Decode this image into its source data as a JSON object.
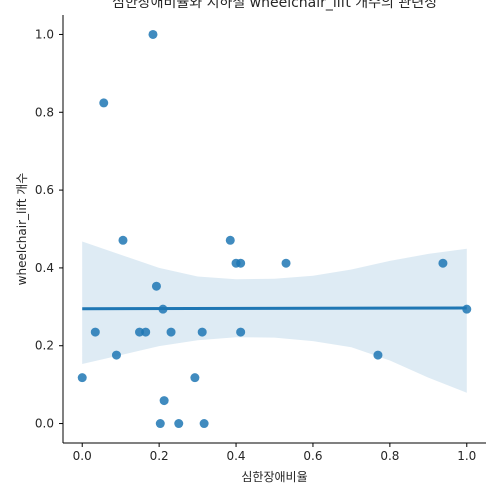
{
  "chart_data": {
    "type": "scatter",
    "title": "심한장애비율와 지하철 wheelchair_lift 개수의 관련성",
    "xlabel": "심한장애비율",
    "ylabel": "wheelchair_lift 개수",
    "xlim": [
      -0.05,
      1.05
    ],
    "ylim": [
      -0.05,
      1.05
    ],
    "x_ticks": [
      0.0,
      0.2,
      0.4,
      0.6,
      0.8,
      1.0
    ],
    "y_ticks": [
      0.0,
      0.2,
      0.4,
      0.6,
      0.8,
      1.0
    ],
    "x_tick_labels": [
      "0.0",
      "0.2",
      "0.4",
      "0.6",
      "0.8",
      "1.0"
    ],
    "y_tick_labels": [
      "0.0",
      "0.2",
      "0.4",
      "0.6",
      "0.8",
      "1.0"
    ],
    "grid": false,
    "points": [
      {
        "x": 0.184,
        "y": 1.0
      },
      {
        "x": 0.056,
        "y": 0.824
      },
      {
        "x": 0.106,
        "y": 0.471
      },
      {
        "x": 0.385,
        "y": 0.471
      },
      {
        "x": 0.4,
        "y": 0.412
      },
      {
        "x": 0.412,
        "y": 0.412
      },
      {
        "x": 0.53,
        "y": 0.412
      },
      {
        "x": 0.938,
        "y": 0.412
      },
      {
        "x": 0.193,
        "y": 0.353
      },
      {
        "x": 0.21,
        "y": 0.294
      },
      {
        "x": 1.0,
        "y": 0.294
      },
      {
        "x": 0.034,
        "y": 0.235
      },
      {
        "x": 0.149,
        "y": 0.235
      },
      {
        "x": 0.165,
        "y": 0.235
      },
      {
        "x": 0.231,
        "y": 0.235
      },
      {
        "x": 0.312,
        "y": 0.235
      },
      {
        "x": 0.412,
        "y": 0.235
      },
      {
        "x": 0.089,
        "y": 0.176
      },
      {
        "x": 0.769,
        "y": 0.176
      },
      {
        "x": 0.0,
        "y": 0.118
      },
      {
        "x": 0.293,
        "y": 0.118
      },
      {
        "x": 0.213,
        "y": 0.059
      },
      {
        "x": 0.203,
        "y": 0.0
      },
      {
        "x": 0.251,
        "y": 0.0
      },
      {
        "x": 0.317,
        "y": 0.0
      }
    ],
    "regression": {
      "x": [
        0.0,
        1.0
      ],
      "y": [
        0.295,
        0.297
      ]
    },
    "confidence_band": {
      "x": [
        0.0,
        0.1,
        0.2,
        0.3,
        0.4,
        0.5,
        0.6,
        0.7,
        0.8,
        0.9,
        1.0
      ],
      "upper": [
        0.468,
        0.434,
        0.4,
        0.378,
        0.371,
        0.372,
        0.38,
        0.396,
        0.418,
        0.436,
        0.449
      ],
      "lower": [
        0.153,
        0.176,
        0.199,
        0.214,
        0.222,
        0.221,
        0.212,
        0.196,
        0.162,
        0.118,
        0.079
      ]
    },
    "colors": {
      "point": "#1f77b4",
      "line": "#1f77b4",
      "band": "#1f77b4",
      "axis": "#000000",
      "text": "#262626"
    }
  }
}
